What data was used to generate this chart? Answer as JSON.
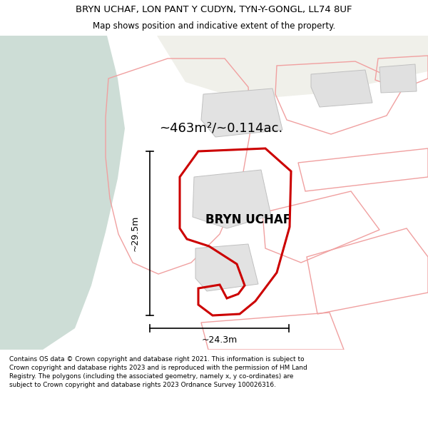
{
  "title_line1": "BRYN UCHAF, LON PANT Y CUDYN, TYN-Y-GONGL, LL74 8UF",
  "title_line2": "Map shows position and indicative extent of the property.",
  "label_property": "BRYN UCHAF",
  "label_area": "~463m²/~0.114ac.",
  "label_height": "~29.5m",
  "label_width": "~24.3m",
  "footer_text": "Contains OS data © Crown copyright and database right 2021. This information is subject to Crown copyright and database rights 2023 and is reproduced with the permission of HM Land Registry. The polygons (including the associated geometry, namely x, y co-ordinates) are subject to Crown copyright and database rights 2023 Ordnance Survey 100026316.",
  "bg_map_color": "#f5f5f0",
  "bg_green_color": "#cdddd6",
  "pink_color": "#f0a0a0",
  "red_color": "#cc0000",
  "building_fill": "#e0e0e0",
  "building_edge": "#c0c0c0",
  "title_fontsize": 9.5,
  "subtitle_fontsize": 8.5,
  "footer_fontsize": 6.4
}
